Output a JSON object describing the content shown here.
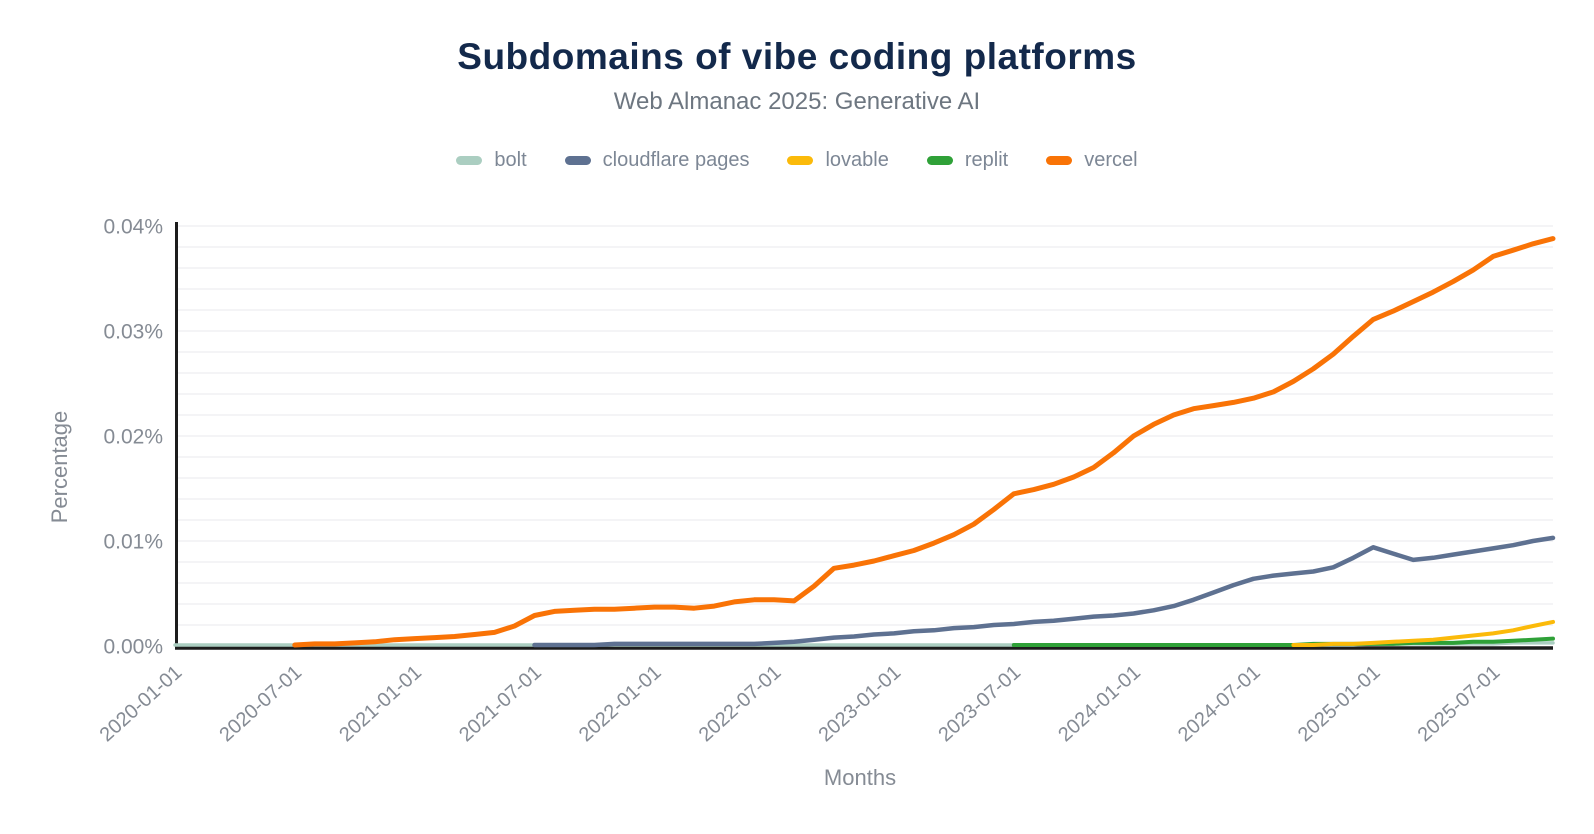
{
  "header": {
    "title": "Subdomains of vibe coding platforms",
    "subtitle": "Web Almanac 2025: Generative AI"
  },
  "axes": {
    "y_title": "Percentage",
    "x_title": "Months",
    "y_ticks": [
      "0.00%",
      "0.01%",
      "0.02%",
      "0.03%",
      "0.04%"
    ],
    "x_ticks": [
      "2020-01-01",
      "2020-07-01",
      "2021-01-01",
      "2021-07-01",
      "2022-01-01",
      "2022-07-01",
      "2023-01-01",
      "2023-07-01",
      "2024-01-01",
      "2024-07-01",
      "2025-01-01",
      "2025-07-01"
    ]
  },
  "colors": {
    "title": "#13294b",
    "subtitle": "#6d7680",
    "axis_text": "#858b94",
    "axis_line": "#1c1c1c",
    "gridline": "#ededf1"
  },
  "chart_data": {
    "type": "line",
    "title": "Subdomains of vibe coding platforms",
    "subtitle": "Web Almanac 2025: Generative AI",
    "xlabel": "Months",
    "ylabel": "Percentage",
    "y_unit": "%",
    "ylim": [
      0,
      0.04
    ],
    "grid": "horizontal lines every 0.002%",
    "legend_position": "top",
    "x": [
      "2020-01",
      "2020-02",
      "2020-03",
      "2020-04",
      "2020-05",
      "2020-06",
      "2020-07",
      "2020-08",
      "2020-09",
      "2020-10",
      "2020-11",
      "2020-12",
      "2021-01",
      "2021-02",
      "2021-03",
      "2021-04",
      "2021-05",
      "2021-06",
      "2021-07",
      "2021-08",
      "2021-09",
      "2021-10",
      "2021-11",
      "2021-12",
      "2022-01",
      "2022-02",
      "2022-03",
      "2022-04",
      "2022-05",
      "2022-06",
      "2022-07",
      "2022-08",
      "2022-09",
      "2022-10",
      "2022-11",
      "2022-12",
      "2023-01",
      "2023-02",
      "2023-03",
      "2023-04",
      "2023-05",
      "2023-06",
      "2023-07",
      "2023-08",
      "2023-09",
      "2023-10",
      "2023-11",
      "2023-12",
      "2024-01",
      "2024-02",
      "2024-03",
      "2024-04",
      "2024-05",
      "2024-06",
      "2024-07",
      "2024-08",
      "2024-09",
      "2024-10",
      "2024-11",
      "2024-12",
      "2025-01",
      "2025-02",
      "2025-03",
      "2025-04",
      "2025-05",
      "2025-06",
      "2025-07",
      "2025-08",
      "2025-09",
      "2025-10"
    ],
    "series": [
      {
        "name": "bolt",
        "color": "#abcec1",
        "values": [
          0.0001,
          0.0001,
          0.0001,
          0.0001,
          0.0001,
          0.0001,
          0.0001,
          0.0001,
          0.0001,
          0.0001,
          0.0001,
          0.0001,
          0.0001,
          0.0001,
          0.0001,
          0.0001,
          0.0001,
          0.0001,
          0.0001,
          0.0001,
          0.0001,
          0.0001,
          0.0001,
          0.0001,
          0.0001,
          0.0001,
          0.0001,
          0.0001,
          0.0001,
          0.0001,
          0.0001,
          0.0001,
          0.0001,
          0.0001,
          0.0001,
          0.0001,
          0.0001,
          0.0001,
          0.0001,
          0.0001,
          0.0001,
          0.0001,
          0.0001,
          0.0001,
          0.0001,
          0.0001,
          0.0001,
          0.0001,
          0.0001,
          0.0001,
          0.0001,
          0.0001,
          0.0001,
          0.0001,
          0.0001,
          0.0001,
          0.0001,
          0.0001,
          0.0001,
          0.0001,
          0.0002,
          0.0002,
          0.0002,
          0.0002,
          0.0002,
          0.0002,
          0.0002,
          0.0003,
          0.0003,
          0.0003
        ]
      },
      {
        "name": "cloudflare pages",
        "color": "#5e7191",
        "values": [
          null,
          null,
          null,
          null,
          null,
          null,
          null,
          null,
          null,
          null,
          null,
          null,
          null,
          null,
          null,
          null,
          null,
          null,
          0.0001,
          0.0001,
          0.0001,
          0.0001,
          0.0002,
          0.0002,
          0.0002,
          0.0002,
          0.0002,
          0.0002,
          0.0002,
          0.0002,
          0.0003,
          0.0004,
          0.0006,
          0.0008,
          0.0009,
          0.0011,
          0.0012,
          0.0014,
          0.0015,
          0.0017,
          0.0018,
          0.002,
          0.0021,
          0.0023,
          0.0024,
          0.0026,
          0.0028,
          0.0029,
          0.0031,
          0.0034,
          0.0038,
          0.0044,
          0.0051,
          0.0058,
          0.0064,
          0.0067,
          0.0069,
          0.0071,
          0.0075,
          0.0084,
          0.0094,
          0.0088,
          0.0082,
          0.0084,
          0.0087,
          0.009,
          0.0093,
          0.0096,
          0.01,
          0.0103
        ]
      },
      {
        "name": "lovable",
        "color": "#fbba0a",
        "values": [
          null,
          null,
          null,
          null,
          null,
          null,
          null,
          null,
          null,
          null,
          null,
          null,
          null,
          null,
          null,
          null,
          null,
          null,
          null,
          null,
          null,
          null,
          null,
          null,
          null,
          null,
          null,
          null,
          null,
          null,
          null,
          null,
          null,
          null,
          null,
          null,
          null,
          null,
          null,
          null,
          null,
          null,
          null,
          null,
          null,
          null,
          null,
          null,
          null,
          null,
          null,
          null,
          null,
          null,
          null,
          null,
          0.0001,
          0.0001,
          0.0002,
          0.0002,
          0.0003,
          0.0004,
          0.0005,
          0.0006,
          0.0008,
          0.001,
          0.0012,
          0.0015,
          0.0019,
          0.0023
        ]
      },
      {
        "name": "replit",
        "color": "#2fa138",
        "values": [
          null,
          null,
          null,
          null,
          null,
          null,
          null,
          null,
          null,
          null,
          null,
          null,
          null,
          null,
          null,
          null,
          null,
          null,
          null,
          null,
          null,
          null,
          null,
          null,
          null,
          null,
          null,
          null,
          null,
          null,
          null,
          null,
          null,
          null,
          null,
          null,
          null,
          null,
          null,
          null,
          null,
          null,
          0.0001,
          0.0001,
          0.0001,
          0.0001,
          0.0001,
          0.0001,
          0.0001,
          0.0001,
          0.0001,
          0.0001,
          0.0001,
          0.0001,
          0.0001,
          0.0001,
          0.0001,
          0.0002,
          0.0002,
          0.0002,
          0.0002,
          0.0002,
          0.0003,
          0.0003,
          0.0003,
          0.0004,
          0.0004,
          0.0005,
          0.0006,
          0.0007
        ]
      },
      {
        "name": "vercel",
        "color": "#f97306",
        "values": [
          null,
          null,
          null,
          null,
          null,
          null,
          0.0001,
          0.0002,
          0.0002,
          0.0003,
          0.0004,
          0.0006,
          0.0007,
          0.0008,
          0.0009,
          0.0011,
          0.0013,
          0.0019,
          0.0029,
          0.0033,
          0.0034,
          0.0035,
          0.0035,
          0.0036,
          0.0037,
          0.0037,
          0.0036,
          0.0038,
          0.0042,
          0.0044,
          0.0044,
          0.0043,
          0.0057,
          0.0074,
          0.0077,
          0.0081,
          0.0086,
          0.0091,
          0.0098,
          0.0106,
          0.0116,
          0.013,
          0.0145,
          0.0149,
          0.0154,
          0.0161,
          0.017,
          0.0184,
          0.02,
          0.0211,
          0.022,
          0.0226,
          0.0229,
          0.0232,
          0.0236,
          0.0242,
          0.0252,
          0.0264,
          0.0278,
          0.0295,
          0.0311,
          0.0319,
          0.0328,
          0.0337,
          0.0347,
          0.0358,
          0.0371,
          0.0377,
          0.0383,
          0.0388
        ]
      }
    ]
  }
}
